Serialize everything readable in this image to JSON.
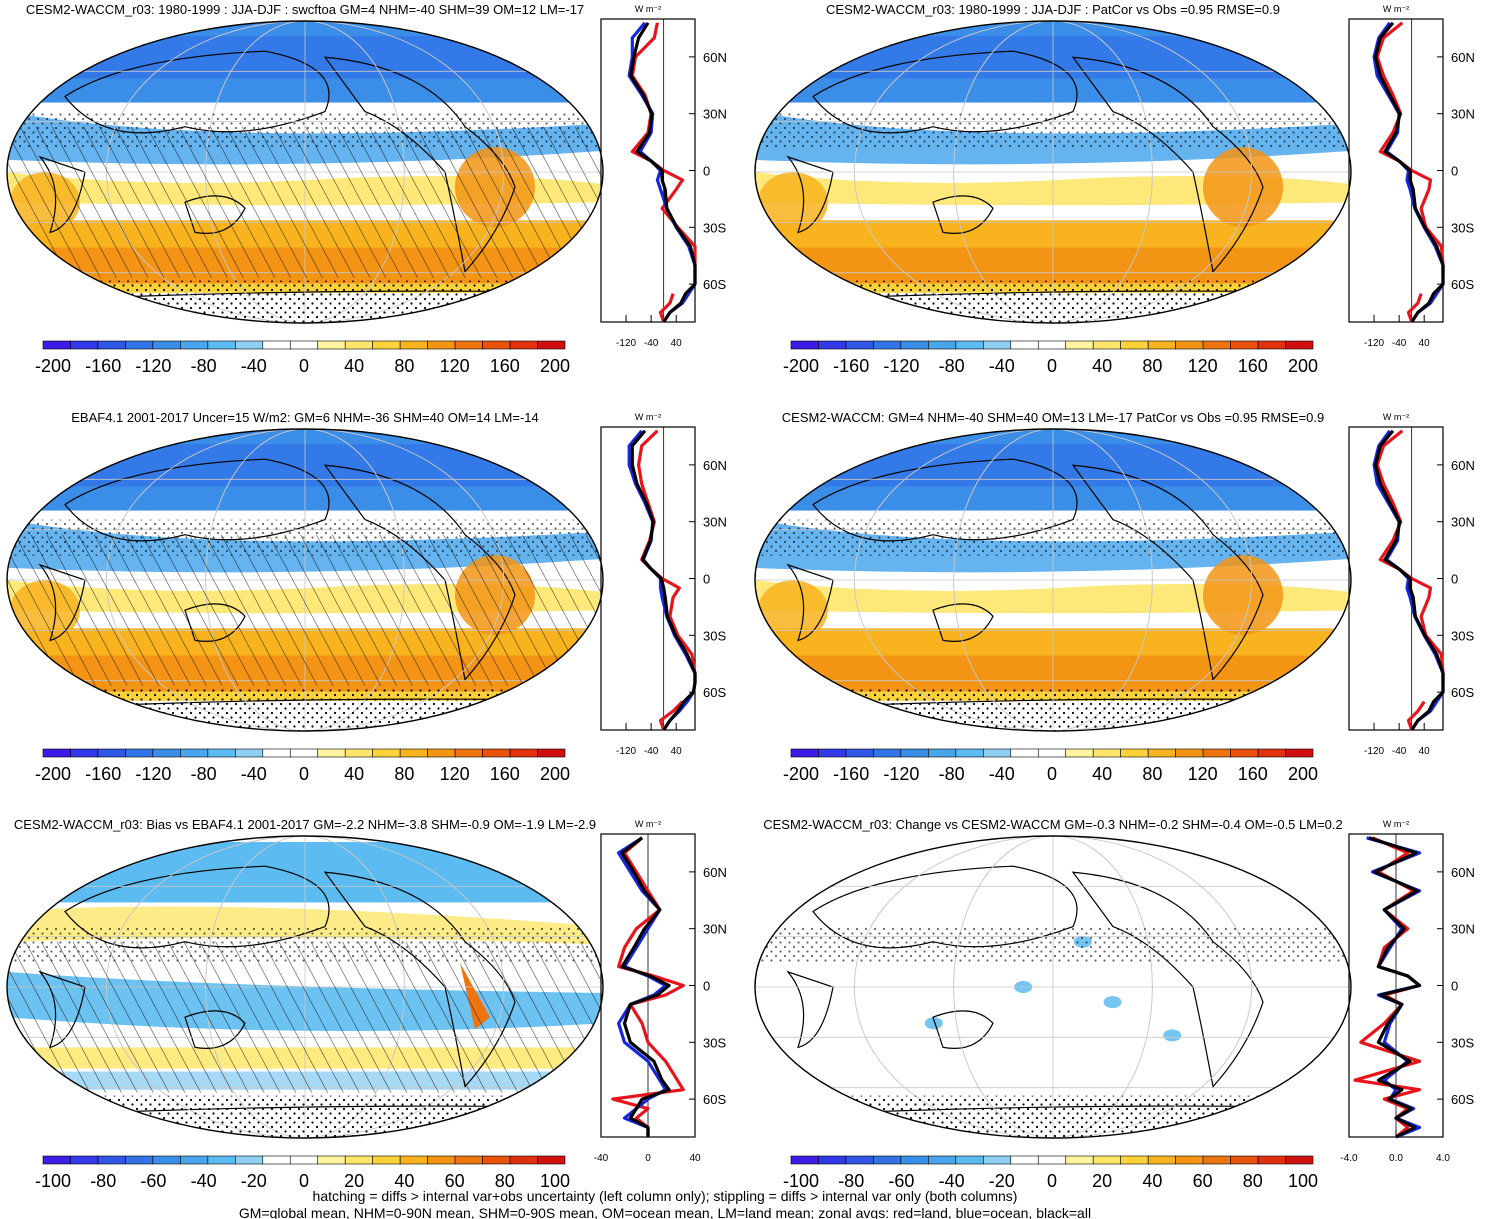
{
  "footer": {
    "line1": "hatching = diffs > internal var+obs uncertainty (left column only); stippling = diffs > internal var only (both columns)",
    "line2": "GM=global mean, NHM=0-90N mean, SHM=0-90S mean, OM=ocean mean, LM=land mean; zonal avgs: red=land, blue=ocean, black=all"
  },
  "legend_colors": {
    "land": "#e8131b",
    "ocean": "#1426e0",
    "all": "#000000"
  },
  "colorscale": {
    "cool": [
      "#3b1ce6",
      "#3338e8",
      "#2f56e6",
      "#3274e6",
      "#3a8ee8",
      "#4aa6ec",
      "#5cbbf0",
      "#8ed0f2"
    ],
    "warm": [
      "#fff4a0",
      "#fde66a",
      "#fbd23a",
      "#f8b31e",
      "#f39414",
      "#ee7410",
      "#e8520c",
      "#e0300c",
      "#d01010"
    ]
  },
  "chart_data": [
    {
      "type": "map+zonal-profile",
      "title": "CESM2-WACCM_r03: 1980-1999 : JJA-DJF : swcftoa GM=4 NHM=-40 SHM=39 OM=12 LM=-17",
      "units": "W m⁻²",
      "colorbar_labels": [
        "-200",
        "-160",
        "-120",
        "-80",
        "-40",
        "0",
        "40",
        "80",
        "120",
        "160",
        "200"
      ],
      "zonal_xticks": [
        "-120",
        "-40",
        "40"
      ],
      "zonal_xlim": [
        -200,
        100
      ],
      "lat_labels": [
        "60N",
        "30N",
        "0",
        "30S",
        "60S"
      ],
      "latitudes": [
        78,
        70,
        60,
        50,
        40,
        30,
        20,
        10,
        5,
        0,
        -5,
        -10,
        -20,
        -30,
        -40,
        -50,
        -55,
        -60,
        -65,
        -70,
        -75,
        -80
      ],
      "series": [
        {
          "name": "land",
          "values": [
            -20,
            -30,
            -90,
            -100,
            -60,
            -40,
            -50,
            -100,
            -40,
            0,
            60,
            40,
            -5,
            45,
            100,
            120,
            130,
            null,
            30,
            20,
            -10,
            0
          ]
        },
        {
          "name": "ocean",
          "values": [
            -60,
            -100,
            -100,
            -110,
            -70,
            -35,
            -40,
            -75,
            -40,
            -10,
            -20,
            -10,
            10,
            40,
            80,
            110,
            130,
            100,
            80,
            60,
            20,
            0
          ]
        },
        {
          "name": "all",
          "values": [
            -50,
            -80,
            -95,
            -105,
            -65,
            -38,
            -45,
            -85,
            -40,
            -5,
            -5,
            5,
            10,
            42,
            85,
            115,
            132,
            100,
            70,
            55,
            20,
            0
          ]
        }
      ]
    },
    {
      "type": "map+zonal-profile",
      "title": "CESM2-WACCM_r03: 1980-1999 : JJA-DJF : PatCor vs Obs =0.95 RMSE=0.9",
      "units": "W m⁻²",
      "colorbar_labels": [
        "-200",
        "-160",
        "-120",
        "-80",
        "-40",
        "0",
        "40",
        "80",
        "120",
        "160",
        "200"
      ],
      "zonal_xticks": [
        "-120",
        "-40",
        "40"
      ],
      "zonal_xlim": [
        -200,
        100
      ],
      "lat_labels": [
        "60N",
        "30N",
        "0",
        "30S",
        "60S"
      ],
      "latitudes": [
        78,
        70,
        60,
        50,
        40,
        30,
        20,
        10,
        5,
        0,
        -5,
        -10,
        -20,
        -30,
        -40,
        -50,
        -55,
        -60,
        -65,
        -70,
        -75,
        -80
      ],
      "series": [
        {
          "name": "land",
          "values": [
            -30,
            -90,
            -110,
            -90,
            -60,
            -35,
            -60,
            -100,
            -40,
            0,
            60,
            55,
            30,
            45,
            95,
            120,
            130,
            null,
            30,
            20,
            -10,
            0
          ]
        },
        {
          "name": "ocean",
          "values": [
            -70,
            -105,
            -120,
            -110,
            -75,
            -40,
            -45,
            -80,
            -40,
            -10,
            -15,
            -5,
            10,
            40,
            75,
            105,
            125,
            100,
            80,
            60,
            20,
            0
          ]
        },
        {
          "name": "all",
          "values": [
            -60,
            -100,
            -115,
            -100,
            -70,
            -38,
            -50,
            -85,
            -40,
            -5,
            -5,
            5,
            12,
            42,
            80,
            110,
            128,
            100,
            70,
            55,
            20,
            0
          ]
        }
      ]
    },
    {
      "type": "map+zonal-profile",
      "title": "EBAF4.1 2001-2017 Uncer=15 W/m2: GM=6 NHM=-36 SHM=40 OM=14 LM=-14",
      "units": "W m⁻²",
      "colorbar_labels": [
        "-200",
        "-160",
        "-120",
        "-80",
        "-40",
        "0",
        "40",
        "80",
        "120",
        "160",
        "200"
      ],
      "zonal_xticks": [
        "-120",
        "-40",
        "40"
      ],
      "zonal_xlim": [
        -200,
        100
      ],
      "lat_labels": [
        "60N",
        "30N",
        "0",
        "30S",
        "60S"
      ],
      "latitudes": [
        78,
        70,
        60,
        50,
        40,
        30,
        20,
        10,
        5,
        0,
        -5,
        -10,
        -20,
        -30,
        -40,
        -50,
        -55,
        -60,
        -65,
        -70,
        -75,
        -80
      ],
      "series": [
        {
          "name": "land",
          "values": [
            -20,
            -70,
            -80,
            -70,
            -50,
            -30,
            -45,
            -70,
            -40,
            -5,
            50,
            30,
            20,
            45,
            90,
            115,
            125,
            null,
            60,
            30,
            -10,
            0
          ]
        },
        {
          "name": "ocean",
          "values": [
            -70,
            -110,
            -110,
            -90,
            -60,
            -35,
            -40,
            -65,
            -40,
            -10,
            -10,
            -5,
            10,
            35,
            70,
            100,
            115,
            95,
            75,
            50,
            20,
            0
          ]
        },
        {
          "name": "all",
          "values": [
            -60,
            -100,
            -100,
            -85,
            -55,
            -33,
            -42,
            -67,
            -40,
            -8,
            0,
            5,
            12,
            38,
            75,
            105,
            118,
            95,
            65,
            45,
            20,
            0
          ]
        }
      ]
    },
    {
      "type": "map+zonal-profile",
      "title": "CESM2-WACCM: GM=4 NHM=-40 SHM=40 OM=13 LM=-17 PatCor vs Obs =0.95 RMSE=0.9",
      "units": "W m⁻²",
      "colorbar_labels": [
        "-200",
        "-160",
        "-120",
        "-80",
        "-40",
        "0",
        "40",
        "80",
        "120",
        "160",
        "200"
      ],
      "zonal_xticks": [
        "-120",
        "-40",
        "40"
      ],
      "zonal_xlim": [
        -200,
        100
      ],
      "lat_labels": [
        "60N",
        "30N",
        "0",
        "30S",
        "60S"
      ],
      "latitudes": [
        78,
        70,
        60,
        50,
        40,
        30,
        20,
        10,
        5,
        0,
        -5,
        -10,
        -20,
        -30,
        -40,
        -50,
        -55,
        -60,
        -65,
        -70,
        -75,
        -80
      ],
      "series": [
        {
          "name": "land",
          "values": [
            -30,
            -90,
            -110,
            -90,
            -60,
            -35,
            -60,
            -100,
            -40,
            0,
            60,
            55,
            30,
            45,
            95,
            120,
            130,
            null,
            40,
            20,
            -10,
            0
          ]
        },
        {
          "name": "ocean",
          "values": [
            -70,
            -105,
            -120,
            -110,
            -75,
            -40,
            -45,
            -80,
            -40,
            -10,
            -15,
            -5,
            10,
            40,
            75,
            105,
            125,
            100,
            80,
            60,
            20,
            0
          ]
        },
        {
          "name": "all",
          "values": [
            -60,
            -100,
            -115,
            -100,
            -70,
            -38,
            -50,
            -85,
            -40,
            -5,
            -5,
            5,
            12,
            42,
            80,
            110,
            128,
            100,
            70,
            55,
            20,
            0
          ]
        }
      ]
    },
    {
      "type": "map+zonal-profile",
      "title": "CESM2-WACCM_r03: Bias vs EBAF4.1 2001-2017 GM=-2.2 NHM=-3.8 SHM=-0.9 OM=-1.9 LM=-2.9",
      "units": "W m⁻²",
      "colorbar_labels": [
        "-100",
        "-80",
        "-60",
        "-40",
        "-20",
        "0",
        "20",
        "40",
        "60",
        "80",
        "100"
      ],
      "zonal_xticks": [
        "-40",
        "0",
        "40"
      ],
      "zonal_xlim": [
        -40,
        40
      ],
      "lat_labels": [
        "60N",
        "30N",
        "0",
        "30S",
        "60S"
      ],
      "latitudes": [
        78,
        70,
        60,
        50,
        40,
        30,
        20,
        10,
        5,
        0,
        -5,
        -10,
        -20,
        -30,
        -40,
        -50,
        -55,
        -60,
        -65,
        -70,
        -75,
        -80
      ],
      "series": [
        {
          "name": "land",
          "values": [
            -5,
            -20,
            -10,
            0,
            10,
            -10,
            -20,
            -25,
            5,
            30,
            15,
            -15,
            -5,
            0,
            15,
            25,
            30,
            -30,
            0,
            -10,
            0,
            0
          ]
        },
        {
          "name": "ocean",
          "values": [
            -5,
            -25,
            -15,
            -5,
            10,
            0,
            -10,
            -20,
            0,
            15,
            5,
            -15,
            -25,
            -20,
            0,
            10,
            15,
            0,
            -10,
            -20,
            0,
            0
          ]
        },
        {
          "name": "all",
          "values": [
            -5,
            -22,
            -12,
            -3,
            10,
            -3,
            -12,
            -22,
            2,
            18,
            8,
            -15,
            -20,
            -15,
            5,
            12,
            18,
            -5,
            -10,
            -15,
            0,
            0
          ]
        }
      ]
    },
    {
      "type": "map+zonal-profile",
      "title": "CESM2-WACCM_r03: Change vs CESM2-WACCM GM=-0.3 NHM=-0.2 SHM=-0.4 OM=-0.5 LM=0.2",
      "units": "W m⁻²",
      "colorbar_labels": [
        "-100",
        "-80",
        "-60",
        "-40",
        "-20",
        "0",
        "20",
        "40",
        "60",
        "80",
        "100"
      ],
      "zonal_xticks": [
        "-4.0",
        "0.0",
        "4.0"
      ],
      "zonal_xlim": [
        -4,
        4
      ],
      "lat_labels": [
        "60N",
        "30N",
        "0",
        "30S",
        "60S"
      ],
      "latitudes": [
        78,
        70,
        60,
        50,
        40,
        30,
        20,
        10,
        5,
        0,
        -5,
        -10,
        -20,
        -30,
        -40,
        -50,
        -55,
        -60,
        -65,
        -70,
        -75,
        -80
      ],
      "series": [
        {
          "name": "land",
          "values": [
            -2,
            1,
            -1.5,
            1.5,
            -1,
            1,
            -1,
            -1.5,
            1,
            2,
            -1,
            0.5,
            -1,
            -3,
            2,
            -3.5,
            2,
            -1,
            1,
            0,
            1,
            0
          ]
        },
        {
          "name": "ocean",
          "values": [
            -2.5,
            2,
            -2,
            2,
            -1,
            0.5,
            -0.5,
            -1.5,
            1,
            2,
            -1.5,
            0.5,
            -0.5,
            -1,
            1,
            -1,
            0,
            -0.5,
            1.5,
            0,
            2,
            0
          ]
        },
        {
          "name": "all",
          "values": [
            -2.3,
            1.7,
            -1.8,
            1.8,
            -1,
            0.7,
            -0.7,
            -1.5,
            1,
            2,
            -1.3,
            0.5,
            -0.7,
            -1.5,
            1.2,
            -1.5,
            0.5,
            -0.6,
            1.3,
            0,
            1.6,
            0
          ]
        }
      ]
    }
  ]
}
